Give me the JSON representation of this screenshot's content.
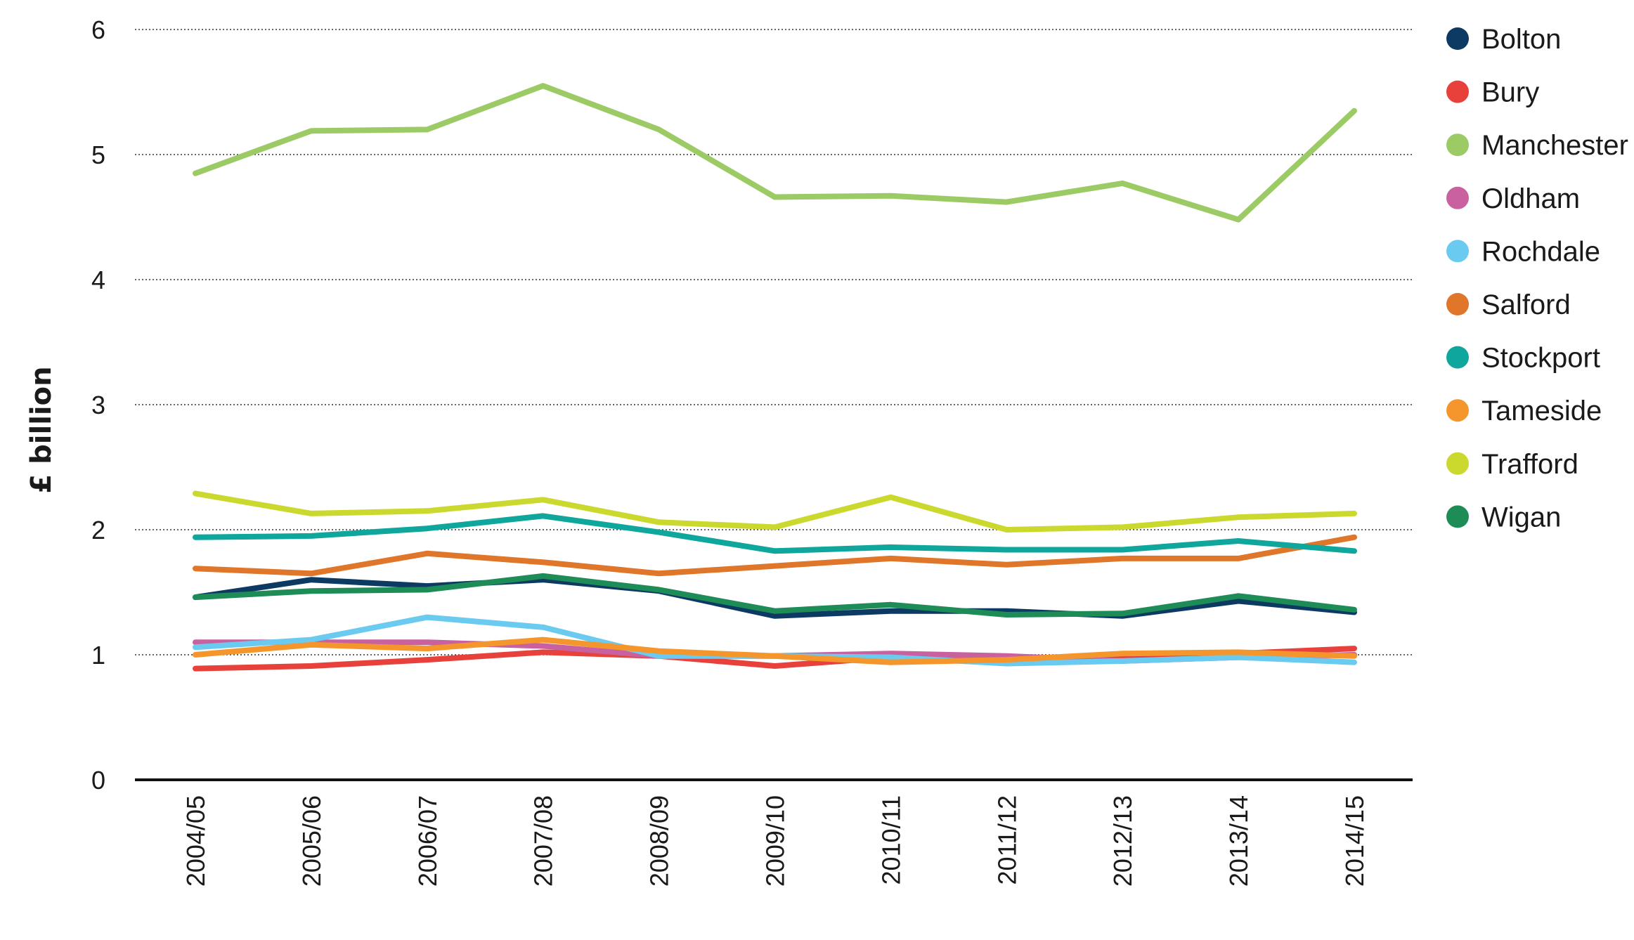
{
  "chart_data": {
    "type": "line",
    "title": "",
    "xlabel": "",
    "ylabel": "£ billion",
    "ylim": [
      0,
      6
    ],
    "yticks": [
      "0",
      "1",
      "2",
      "3",
      "4",
      "5",
      "6"
    ],
    "grid": true,
    "legend_position": "right",
    "categories": [
      "2004/05",
      "2005/06",
      "2006/07",
      "2007/08",
      "2008/09",
      "2009/10",
      "2010/11",
      "2011/12",
      "2012/13",
      "2013/14",
      "2014/15"
    ],
    "series": [
      {
        "name": "Bolton",
        "color": "#0d3a63",
        "values": [
          1.46,
          1.6,
          1.55,
          1.6,
          1.51,
          1.31,
          1.35,
          1.35,
          1.31,
          1.43,
          1.34
        ]
      },
      {
        "name": "Bury",
        "color": "#e8413c",
        "values": [
          0.89,
          0.91,
          0.96,
          1.02,
          0.99,
          0.91,
          0.98,
          0.97,
          0.98,
          1.01,
          1.05
        ]
      },
      {
        "name": "Manchester",
        "color": "#9ccb65",
        "values": [
          4.85,
          5.19,
          5.2,
          5.55,
          5.2,
          4.66,
          4.67,
          4.62,
          4.77,
          4.48,
          5.35
        ]
      },
      {
        "name": "Oldham",
        "color": "#c9609f",
        "values": [
          1.1,
          1.1,
          1.1,
          1.07,
          0.99,
          0.99,
          1.01,
          0.99,
          0.95,
          0.98,
          1.0
        ]
      },
      {
        "name": "Rochdale",
        "color": "#6acaf0",
        "values": [
          1.06,
          1.12,
          1.3,
          1.22,
          0.99,
          0.99,
          0.98,
          0.93,
          0.95,
          0.98,
          0.94
        ]
      },
      {
        "name": "Salford",
        "color": "#df7629",
        "values": [
          1.69,
          1.65,
          1.81,
          1.74,
          1.65,
          1.71,
          1.77,
          1.72,
          1.77,
          1.77,
          1.94
        ]
      },
      {
        "name": "Stockport",
        "color": "#0fa79d",
        "values": [
          1.94,
          1.95,
          2.01,
          2.11,
          1.98,
          1.83,
          1.86,
          1.84,
          1.84,
          1.91,
          1.83
        ]
      },
      {
        "name": "Tameside",
        "color": "#f5962d",
        "values": [
          1.0,
          1.08,
          1.05,
          1.12,
          1.03,
          0.99,
          0.94,
          0.96,
          1.01,
          1.02,
          0.99
        ]
      },
      {
        "name": "Trafford",
        "color": "#cbd92f",
        "values": [
          2.29,
          2.13,
          2.15,
          2.24,
          2.06,
          2.02,
          2.26,
          2.0,
          2.02,
          2.1,
          2.13
        ]
      },
      {
        "name": "Wigan",
        "color": "#1e8c57",
        "values": [
          1.46,
          1.51,
          1.52,
          1.63,
          1.52,
          1.35,
          1.4,
          1.32,
          1.33,
          1.47,
          1.36
        ]
      }
    ]
  }
}
